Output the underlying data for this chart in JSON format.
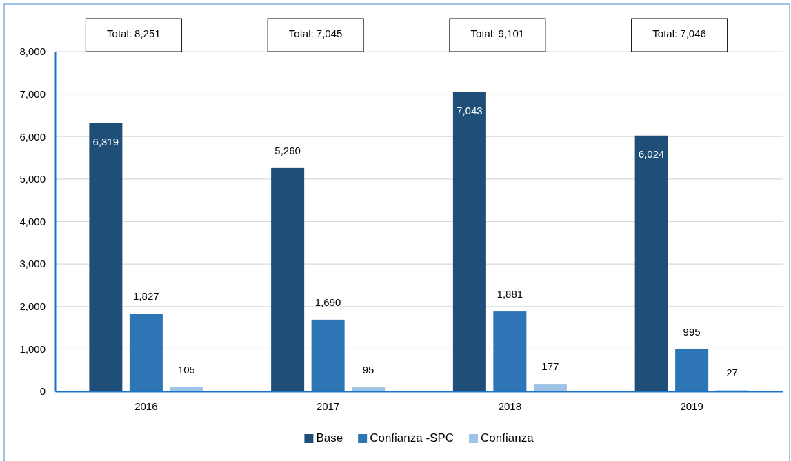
{
  "chart_data": {
    "type": "bar",
    "categories": [
      "2016",
      "2017",
      "2018",
      "2019"
    ],
    "series": [
      {
        "name": "Base",
        "color": "#1f4e79",
        "values": [
          6319,
          5260,
          7043,
          6024
        ],
        "value_labels": [
          "6,319",
          "5,260",
          "7,043",
          "6,024"
        ]
      },
      {
        "name": "Confianza -SPC",
        "color": "#2e75b6",
        "values": [
          1827,
          1690,
          1881,
          995
        ],
        "value_labels": [
          "1,827",
          "1,690",
          "1,881",
          "995"
        ]
      },
      {
        "name": "Confianza",
        "color": "#9dc3e6",
        "values": [
          105,
          95,
          177,
          27
        ],
        "value_labels": [
          "105",
          "95",
          "177",
          "27"
        ]
      }
    ],
    "ylim": [
      0,
      8000
    ],
    "yticks": [
      0,
      {
        "value": 1000,
        "label": "1,000"
      },
      {
        "value": 2000,
        "label": "2,000"
      },
      {
        "value": 3000,
        "label": "3,000"
      },
      {
        "value": 4000,
        "label": "4,000"
      },
      {
        "value": 5000,
        "label": "5,000"
      },
      {
        "value": 6000,
        "label": "6,000"
      },
      {
        "value": 7000,
        "label": "7,000"
      },
      {
        "value": 8000,
        "label": "8,000"
      }
    ],
    "annotations": [
      "Total: 8,251",
      "Total: 7,045",
      "Total: 9,101",
      "Total: 7,046"
    ],
    "grid": "y",
    "legend": "bottom"
  }
}
